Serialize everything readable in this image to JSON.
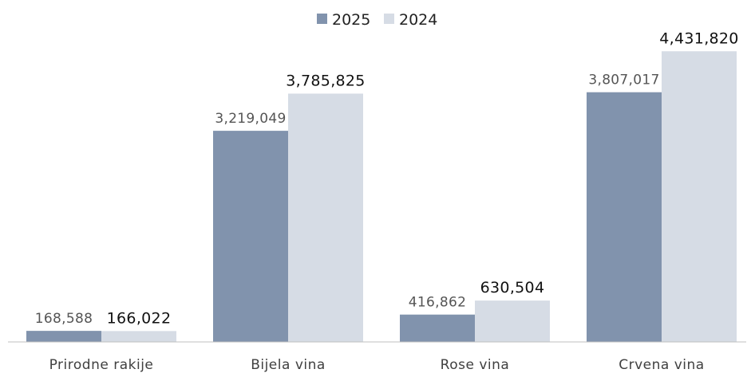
{
  "chart_data": {
    "type": "bar",
    "categories": [
      "Prirodne rakije",
      "Bijela vina",
      "Rose vina",
      "Crvena vina"
    ],
    "series": [
      {
        "name": "2025",
        "values": [
          168588,
          3219049,
          416862,
          3807017
        ],
        "labels": [
          "168,588",
          "3,219,049",
          "416,862",
          "3,807,017"
        ],
        "color": "#8193ad"
      },
      {
        "name": "2024",
        "values": [
          166022,
          3785825,
          630504,
          4431820
        ],
        "labels": [
          "166,022",
          "3,785,825",
          "630,504",
          "4,431,820"
        ],
        "color": "#d6dce5"
      }
    ],
    "ylim": [
      0,
      4800000
    ],
    "grid": false,
    "legend_position": "top-center",
    "axis_color": "#bfbfbf"
  }
}
